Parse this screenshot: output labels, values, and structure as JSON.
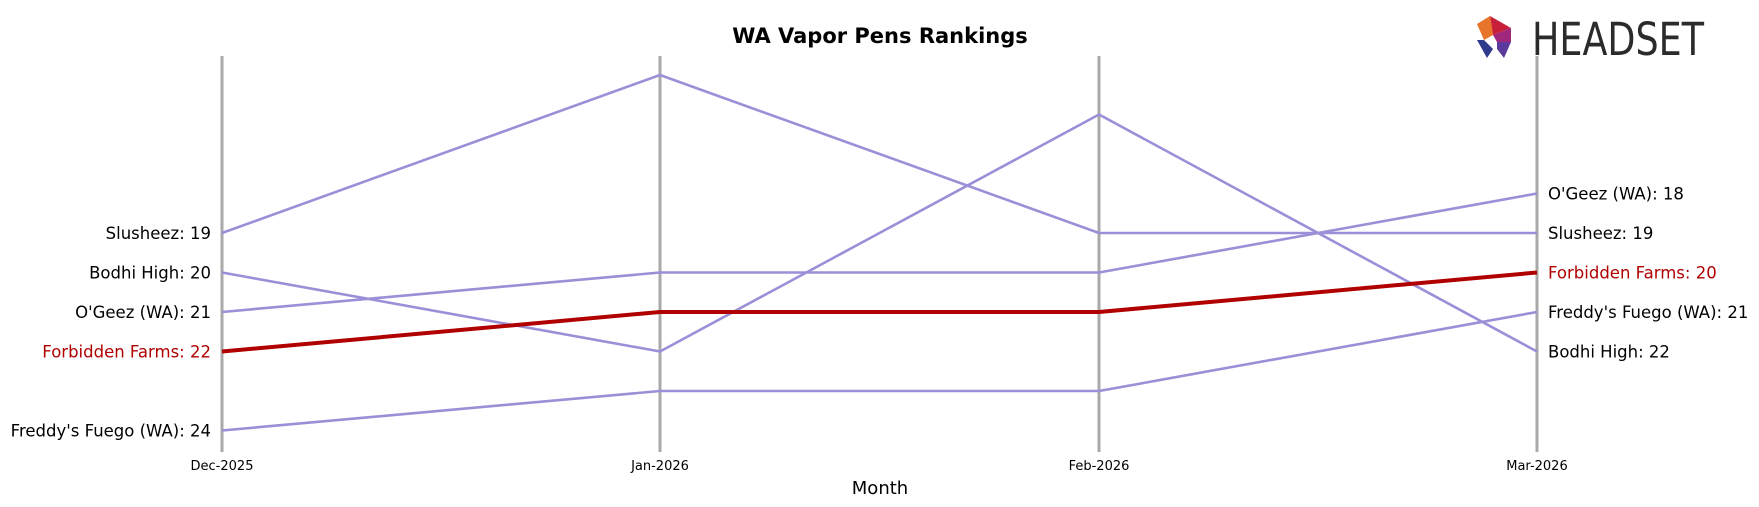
{
  "chart_data": {
    "type": "line",
    "title": "WA Vapor Pens Rankings",
    "xlabel": "Month",
    "ylabel": "",
    "categories": [
      "Dec-2025",
      "Jan-2026",
      "Feb-2026",
      "Mar-2026"
    ],
    "y_inverted": true,
    "ylim": [
      26,
      14
    ],
    "grid": "vertical lines at each month",
    "highlight": "Forbidden Farms",
    "series": [
      {
        "name": "Slusheez",
        "values": [
          19,
          15,
          19,
          19
        ],
        "color": "#9b8fd8"
      },
      {
        "name": "Bodhi High",
        "values": [
          20,
          22,
          16,
          22
        ],
        "color": "#9b8fd8"
      },
      {
        "name": "O'Geez (WA)",
        "values": [
          21,
          20,
          20,
          18
        ],
        "color": "#9b8fd8"
      },
      {
        "name": "Forbidden Farms",
        "values": [
          22,
          21,
          21,
          20
        ],
        "color": "#b00000"
      },
      {
        "name": "Freddy's Fuego (WA)",
        "values": [
          24,
          23,
          23,
          21
        ],
        "color": "#9b8fd8"
      }
    ],
    "left_labels": [
      {
        "text": "Slusheez: 19",
        "series": "Slusheez"
      },
      {
        "text": "Bodhi High: 20",
        "series": "Bodhi High"
      },
      {
        "text": "O'Geez (WA): 21",
        "series": "O'Geez (WA)"
      },
      {
        "text": "Forbidden Farms: 22",
        "series": "Forbidden Farms"
      },
      {
        "text": "Freddy's Fuego (WA): 24",
        "series": "Freddy's Fuego (WA)"
      }
    ],
    "right_labels": [
      {
        "text": "O'Geez (WA): 18",
        "series": "O'Geez (WA)"
      },
      {
        "text": "Slusheez: 19",
        "series": "Slusheez"
      },
      {
        "text": "Forbidden Farms: 20",
        "series": "Forbidden Farms"
      },
      {
        "text": "Freddy's Fuego (WA): 21",
        "series": "Freddy's Fuego (WA)"
      },
      {
        "text": "Bodhi High: 22",
        "series": "Bodhi High"
      }
    ]
  },
  "logo": {
    "text": "HEADSET",
    "colors": {
      "red": "#c8203a",
      "magenta": "#a0287c",
      "orange": "#e8742a",
      "blue": "#2e3a8c",
      "purple": "#5a3a9c"
    }
  }
}
